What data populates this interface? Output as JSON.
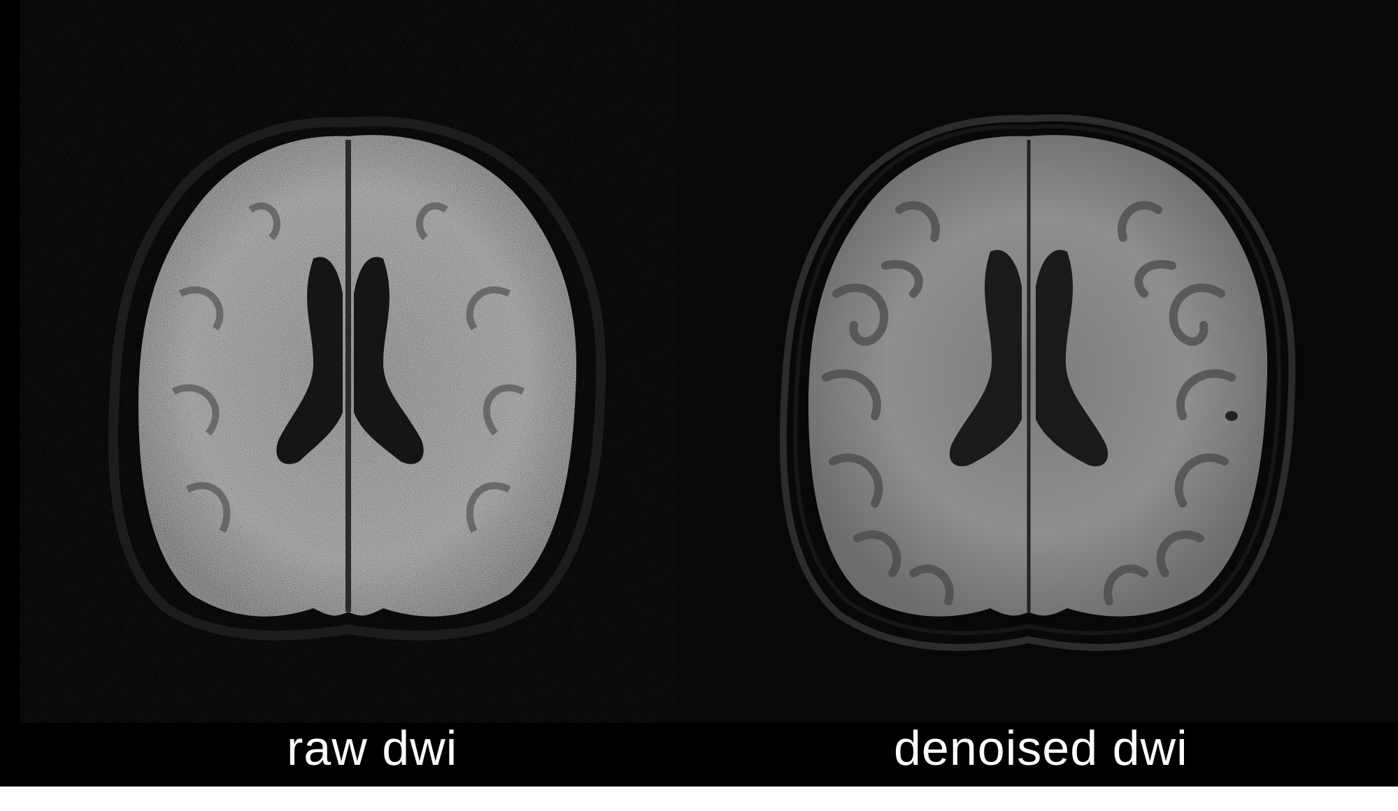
{
  "panels": [
    {
      "label": "raw dwi"
    },
    {
      "label": "denoised dwi"
    }
  ],
  "colors": {
    "background": "#000000",
    "tissue_light": "#a8a8a8",
    "tissue_dark": "#3a3a3a"
  }
}
